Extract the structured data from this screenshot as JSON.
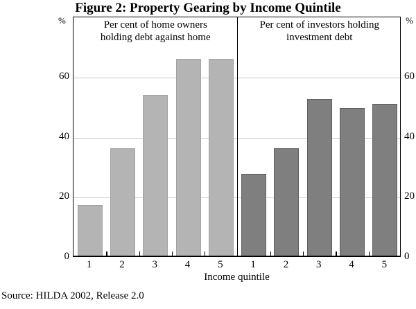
{
  "figure": {
    "source": "Source: HILDA 2002, Release 2.0"
  },
  "chart_data": {
    "type": "bar",
    "title": "Figure 2: Property Gearing by Income Quintile",
    "xlabel": "Income quintile",
    "y_unit": "%",
    "ylim": [
      0,
      80
    ],
    "yticks": [
      0,
      20,
      40,
      60
    ],
    "grid": "horizontal gridlines at 20, 40, 60; drawn behind bars",
    "legend_position": "none (panel captions instead)",
    "categories": [
      "1",
      "2",
      "3",
      "4",
      "5"
    ],
    "panels": [
      {
        "caption_lines": [
          "Per cent of home owners",
          "holding debt against home"
        ],
        "series_name": "Home owners holding debt against home (%)",
        "values": [
          17,
          36,
          54,
          66,
          66
        ],
        "bar_color": "#b4b4b4",
        "bar_border": "#a2a2a2"
      },
      {
        "caption_lines": [
          "Per cent of investors holding",
          "investment debt"
        ],
        "series_name": "Investors holding investment debt (%)",
        "values": [
          27.5,
          36,
          52.5,
          49.5,
          51
        ],
        "bar_color": "#7f7f7f",
        "bar_border": "#5e5e5e"
      }
    ],
    "colors": {
      "grid": "#c9c9c9",
      "frame": "#000000"
    }
  }
}
